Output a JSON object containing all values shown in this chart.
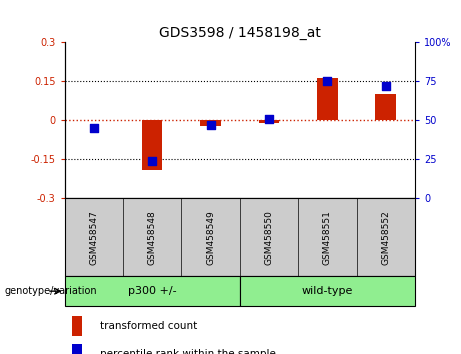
{
  "title": "GDS3598 / 1458198_at",
  "samples": [
    "GSM458547",
    "GSM458548",
    "GSM458549",
    "GSM458550",
    "GSM458551",
    "GSM458552"
  ],
  "red_values": [
    0.002,
    -0.19,
    -0.02,
    -0.01,
    0.162,
    0.1
  ],
  "blue_values": [
    45,
    24,
    47,
    51,
    75,
    72
  ],
  "ylim_left": [
    -0.3,
    0.3
  ],
  "ylim_right": [
    0,
    100
  ],
  "yticks_left": [
    -0.3,
    -0.15,
    0,
    0.15,
    0.3
  ],
  "yticks_right": [
    0,
    25,
    50,
    75,
    100
  ],
  "ytick_labels_left": [
    "-0.3",
    "-0.15",
    "0",
    "0.15",
    "0.3"
  ],
  "ytick_labels_right": [
    "0",
    "25",
    "50",
    "75",
    "100%"
  ],
  "bar_color_red": "#cc2200",
  "bar_color_blue": "#0000cc",
  "legend_red": "transformed count",
  "legend_blue": "percentile rank within the sample",
  "genotype_label": "genotype/variation",
  "bar_width": 0.35,
  "blue_marker_size": 28,
  "group_defs": [
    {
      "label": "p300 +/-",
      "start": 0,
      "end": 2
    },
    {
      "label": "wild-type",
      "start": 3,
      "end": 5
    }
  ]
}
